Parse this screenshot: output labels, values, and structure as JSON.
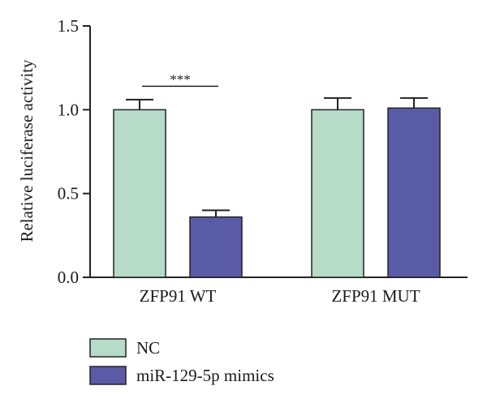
{
  "chart_data": {
    "type": "bar",
    "title": "",
    "xlabel": "",
    "ylabel": "Relative luciferase activity",
    "ylim": [
      0,
      1.5
    ],
    "yticks": [
      0.0,
      0.5,
      1.0,
      1.5
    ],
    "ytick_labels": [
      "0.0",
      "0.5",
      "1.0",
      "1.5"
    ],
    "categories": [
      "ZFP91 WT",
      "ZFP91 MUT"
    ],
    "series": [
      {
        "name": "NC",
        "color": "#b6dbc9",
        "values": [
          1.0,
          1.0
        ],
        "errors": [
          0.06,
          0.07
        ]
      },
      {
        "name": "miR-129-5p mimics",
        "color": "#5a5ba6",
        "values": [
          0.36,
          1.01
        ],
        "errors": [
          0.04,
          0.06
        ]
      }
    ],
    "significance": [
      {
        "category": "ZFP91 WT",
        "label": "***"
      }
    ],
    "legend_position": "bottom-left",
    "grid": false
  }
}
